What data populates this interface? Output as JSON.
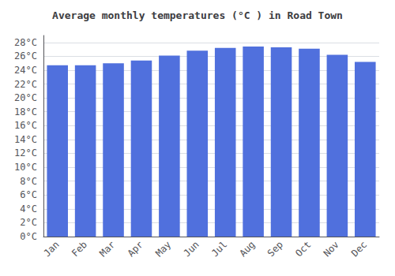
{
  "chart_data": {
    "type": "bar",
    "title": "Average monthly temperatures (°C ) in Road Town",
    "categories": [
      "Jan",
      "Feb",
      "Mar",
      "Apr",
      "May",
      "Jun",
      "Jul",
      "Aug",
      "Sep",
      "Oct",
      "Nov",
      "Dec"
    ],
    "values": [
      24.7,
      24.7,
      25.0,
      25.4,
      26.1,
      26.8,
      27.2,
      27.4,
      27.3,
      27.1,
      26.2,
      25.2
    ],
    "ylim": [
      0,
      29
    ],
    "yticks": [
      {
        "value": 0,
        "label": "0°C"
      },
      {
        "value": 2,
        "label": "2°C"
      },
      {
        "value": 4,
        "label": "4°C"
      },
      {
        "value": 6,
        "label": "6°C"
      },
      {
        "value": 8,
        "label": "8°C"
      },
      {
        "value": 10,
        "label": "10°C"
      },
      {
        "value": 12,
        "label": "12°C"
      },
      {
        "value": 14,
        "label": "14°C"
      },
      {
        "value": 16,
        "label": "16°C"
      },
      {
        "value": 18,
        "label": "18°C"
      },
      {
        "value": 20,
        "label": "20°C"
      },
      {
        "value": 22,
        "label": "22°C"
      },
      {
        "value": 24,
        "label": "24°C"
      },
      {
        "value": 26,
        "label": "26°C"
      },
      {
        "value": 28,
        "label": "28°C"
      }
    ],
    "grid": true
  }
}
